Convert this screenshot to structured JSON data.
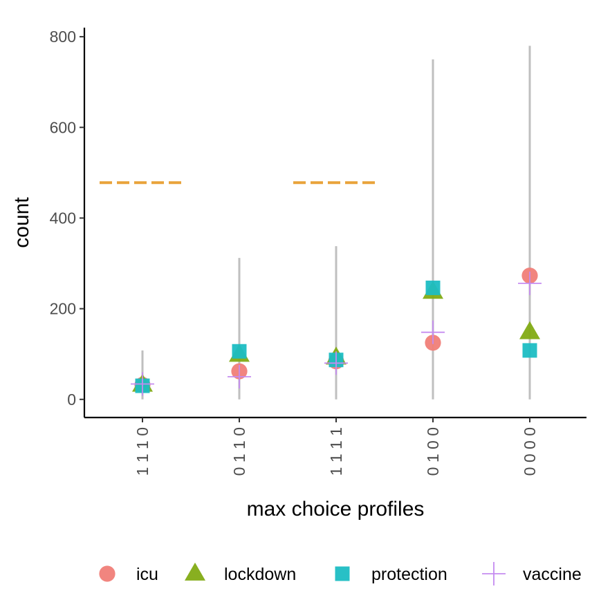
{
  "chart_data": {
    "type": "scatter",
    "title": "",
    "xlabel": "max choice profiles",
    "ylabel": "count",
    "ylim": [
      -40,
      820
    ],
    "yticks": [
      0,
      200,
      400,
      600,
      800
    ],
    "categories": [
      "1 1 1 0",
      "0 1 1 0",
      "1 1 1 1",
      "0 1 0 0",
      "0 0 0 0"
    ],
    "ranges": [
      {
        "category": "1 1 1 0",
        "min": 0,
        "max": 108
      },
      {
        "category": "0 1 1 0",
        "min": 0,
        "max": 312
      },
      {
        "category": "1 1 1 1",
        "min": 0,
        "max": 338
      },
      {
        "category": "0 1 0 0",
        "min": 0,
        "max": 750
      },
      {
        "category": "0 0 0 0",
        "min": 0,
        "max": 780
      }
    ],
    "reference_lines": [
      {
        "category": "1 1 1 0",
        "value": 478,
        "color": "#E9A33A"
      },
      {
        "category": "1 1 1 1",
        "value": 478,
        "color": "#E9A33A"
      }
    ],
    "series": [
      {
        "name": "icu",
        "marker": "circle",
        "color": "#F07E78",
        "values": [
          32,
          62,
          84,
          125,
          273
        ]
      },
      {
        "name": "lockdown",
        "marker": "triangle",
        "color": "#82AB14",
        "values": [
          32,
          98,
          92,
          237,
          148
        ]
      },
      {
        "name": "protection",
        "marker": "square",
        "color": "#1CBDC3",
        "values": [
          30,
          106,
          87,
          246,
          108
        ]
      },
      {
        "name": "vaccine",
        "marker": "plus",
        "color": "#C58BF0",
        "values": [
          34,
          50,
          80,
          148,
          256
        ]
      }
    ],
    "grid": false,
    "legend_position": "bottom"
  }
}
